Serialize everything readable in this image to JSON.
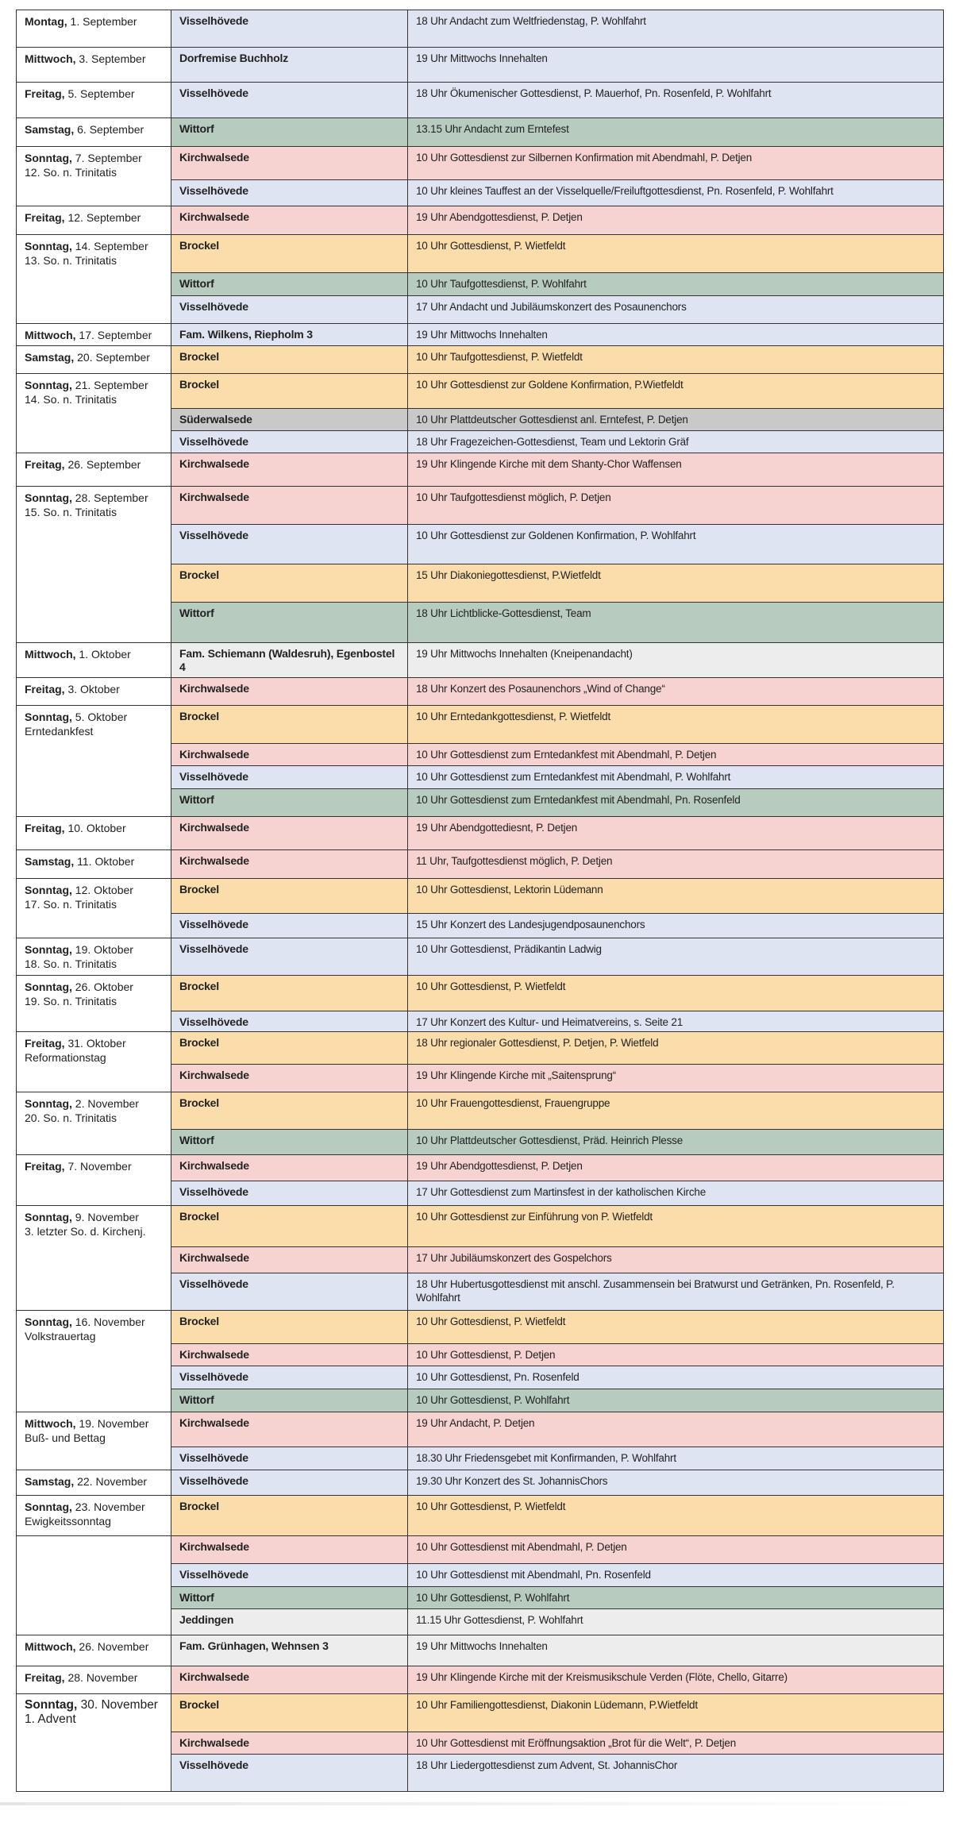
{
  "colors": {
    "blue": "#dfe4f2",
    "pink": "#f6d3d0",
    "orange": "#fbdcab",
    "green": "#b8cbbf",
    "gray": "#c9c9c9",
    "lightgray": "#ededed"
  },
  "days": [
    {
      "day": "Montag,",
      "date": " 1. September",
      "sub": "",
      "events": [
        {
          "loc": "Visselhövede",
          "text": "18 Uhr Andacht zum Weltfriedenstag, P. Wohlfahrt",
          "color": "blue"
        }
      ]
    },
    {
      "day": "Mittwoch,",
      "date": " 3. September",
      "sub": "",
      "events": [
        {
          "loc": "Dorfremise Buchholz",
          "text": "19 Uhr Mittwochs Innehalten",
          "color": "blue"
        }
      ]
    },
    {
      "day": "Freitag,",
      "date": " 5. September",
      "sub": "",
      "events": [
        {
          "loc": "Visselhövede",
          "text": "18 Uhr Ökumenischer Gottesdienst, P. Mauerhof, Pn. Rosenfeld, P. Wohlfahrt",
          "color": "blue"
        }
      ]
    },
    {
      "day": "Samstag,",
      "date": " 6. September",
      "sub": "",
      "events": [
        {
          "loc": "Wittorf",
          "text": "13.15 Uhr Andacht zum Erntefest",
          "color": "green"
        }
      ]
    },
    {
      "day": "Sonntag,",
      "date": " 7. September",
      "sub": "12. So. n. Trinitatis",
      "events": [
        {
          "loc": "Kirchwalsede",
          "text": "10 Uhr Gottesdienst zur Silbernen Konfirmation mit Abendmahl, P. Detjen",
          "color": "pink"
        },
        {
          "loc": "Visselhövede",
          "text": "10 Uhr kleines Tauffest an der Visselquelle/Freiluftgottesdienst, Pn. Rosenfeld, P. Wohlfahrt",
          "color": "blue"
        }
      ]
    },
    {
      "day": "Freitag,",
      "date": " 12. September",
      "sub": "",
      "events": [
        {
          "loc": "Kirchwalsede",
          "text": "19 Uhr Abendgottesdienst, P. Detjen",
          "color": "pink"
        }
      ]
    },
    {
      "day": "Sonntag,",
      "date": " 14. September",
      "sub": "13. So. n. Trinitatis",
      "events": [
        {
          "loc": "Brockel",
          "text": "10 Uhr Gottesdienst, P. Wietfeldt",
          "color": "orange"
        },
        {
          "loc": "Wittorf",
          "text": "10 Uhr Taufgottesdienst, P. Wohlfahrt",
          "color": "green"
        },
        {
          "loc": "Visselhövede",
          "text": "17 Uhr Andacht und Jubiläumskonzert des Posaunenchors",
          "color": "blue"
        }
      ]
    },
    {
      "day": "Mittwoch,",
      "date": " 17. September",
      "sub": "",
      "events": [
        {
          "loc": "Fam. Wilkens, Riepholm 3",
          "text": "19 Uhr Mittwochs Innehalten",
          "color": "blue"
        }
      ]
    },
    {
      "day": "Samstag,",
      "date": " 20. September",
      "sub": "",
      "events": [
        {
          "loc": "Brockel",
          "text": "10 Uhr Taufgottesdienst, P. Wietfeldt",
          "color": "orange"
        }
      ]
    },
    {
      "day": "Sonntag,",
      "date": " 21. September",
      "sub": "14. So. n. Trinitatis",
      "events": [
        {
          "loc": "Brockel",
          "text": "10 Uhr Gottesdienst zur Goldene Konfirmation, P.Wietfeldt",
          "color": "orange"
        },
        {
          "loc": "Süderwalsede",
          "text": "10 Uhr Plattdeutscher Gottesdienst anl. Erntefest, P. Detjen",
          "color": "gray"
        },
        {
          "loc": "Visselhövede",
          "text": "18 Uhr Fragezeichen-Gottesdienst, Team und Lektorin Gräf",
          "color": "blue"
        }
      ]
    },
    {
      "day": "Freitag,",
      "date": " 26. September",
      "sub": "",
      "events": [
        {
          "loc": "Kirchwalsede",
          "text": "19 Uhr Klingende Kirche mit dem Shanty-Chor Waffensen",
          "color": "pink"
        }
      ]
    },
    {
      "day": "Sonntag,",
      "date": " 28. September",
      "sub": "15. So. n. Trinitatis",
      "events": [
        {
          "loc": "Kirchwalsede",
          "text": "10 Uhr Taufgottesdienst möglich, P. Detjen",
          "color": "pink"
        },
        {
          "loc": "Visselhövede",
          "text": "10 Uhr Gottesdienst zur Goldenen Konfirmation, P. Wohlfahrt",
          "color": "blue"
        },
        {
          "loc": "Brockel",
          "text": "15 Uhr Diakoniegottesdienst, P.Wietfeldt",
          "color": "orange"
        },
        {
          "loc": "Wittorf",
          "text": "18 Uhr Lichtblicke-Gottesdienst, Team",
          "color": "green"
        }
      ]
    },
    {
      "day": "Mittwoch,",
      "date": " 1. Oktober",
      "sub": "",
      "events": [
        {
          "loc": "Fam. Schiemann (Waldesruh), Egenbostel 4",
          "text": "19 Uhr Mittwochs Innehalten (Kneipenandacht)",
          "color": "lightgray"
        }
      ]
    },
    {
      "day": "Freitag,",
      "date": " 3. Oktober",
      "sub": "",
      "events": [
        {
          "loc": "Kirchwalsede",
          "text": "18 Uhr Konzert des Posaunenchors „Wind of Change“",
          "color": "pink"
        }
      ]
    },
    {
      "day": "Sonntag,",
      "date": " 5. Oktober",
      "sub": "Erntedankfest",
      "events": [
        {
          "loc": "Brockel",
          "text": "10 Uhr Erntedankgottesdienst, P. Wietfeldt",
          "color": "orange"
        },
        {
          "loc": "Kirchwalsede",
          "text": "10 Uhr Gottesdienst zum Erntedankfest mit Abendmahl, P. Detjen",
          "color": "pink"
        },
        {
          "loc": "Visselhövede",
          "text": "10 Uhr Gottesdienst zum Erntedankfest mit Abendmahl, P. Wohlfahrt",
          "color": "blue"
        },
        {
          "loc": "Wittorf",
          "text": "10 Uhr Gottesdienst zum Erntedankfest mit Abendmahl, Pn. Rosenfeld",
          "color": "green"
        }
      ]
    },
    {
      "day": "Freitag,",
      "date": " 10. Oktober",
      "sub": "",
      "events": [
        {
          "loc": "Kirchwalsede",
          "text": "19 Uhr Abendgottediesnt, P. Detjen",
          "color": "pink"
        }
      ]
    },
    {
      "day": "Samstag,",
      "date": " 11. Oktober",
      "sub": "",
      "events": [
        {
          "loc": "Kirchwalsede",
          "text": "11 Uhr, Taufgottesdienst möglich, P. Detjen",
          "color": "pink"
        }
      ]
    },
    {
      "day": "Sonntag,",
      "date": " 12. Oktober",
      "sub": "17. So. n. Trinitatis",
      "events": [
        {
          "loc": "Brockel",
          "text": "10 Uhr Gottesdienst, Lektorin Lüdemann",
          "color": "orange"
        },
        {
          "loc": "Visselhövede",
          "text": "15 Uhr Konzert des Landesjugendposaunenchors",
          "color": "blue"
        }
      ]
    },
    {
      "day": "Sonntag,",
      "date": " 19. Oktober",
      "sub": "18. So. n. Trinitatis",
      "events": [
        {
          "loc": "Visselhövede",
          "text": "10 Uhr Gottesdienst, Prädikantin Ladwig",
          "color": "blue"
        }
      ]
    },
    {
      "day": "Sonntag,",
      "date": " 26. Oktober",
      "sub": "19. So. n. Trinitatis",
      "events": [
        {
          "loc": "Brockel",
          "text": "10 Uhr Gottesdienst, P. Wietfeldt",
          "color": "orange"
        },
        {
          "loc": "Visselhövede",
          "text": "17 Uhr Konzert des Kultur- und Heimatvereins, s. Seite 21",
          "color": "blue"
        }
      ]
    },
    {
      "day": "Freitag,",
      "date": " 31. Oktober",
      "sub": "Reformationstag",
      "events": [
        {
          "loc": "Brockel",
          "text": "18 Uhr regionaler Gottesdienst, P. Detjen, P. Wietfeld",
          "color": "orange"
        },
        {
          "loc": "Kirchwalsede",
          "text": "19 Uhr Klingende Kirche mit „Saitensprung“",
          "color": "pink"
        }
      ]
    },
    {
      "day": "Sonntag,",
      "date": " 2. November",
      "sub": "20. So. n. Trinitatis",
      "events": [
        {
          "loc": "Brockel",
          "text": "10 Uhr Frauengottesdienst, Frauengruppe",
          "color": "orange"
        },
        {
          "loc": "Wittorf",
          "text": "10 Uhr Plattdeutscher Gottesdienst, Präd. Heinrich Plesse",
          "color": "green"
        }
      ]
    },
    {
      "day": "Freitag,",
      "date": " 7. November",
      "sub": "",
      "events": [
        {
          "loc": "Kirchwalsede",
          "text": "19 Uhr Abendgottesdienst, P. Detjen",
          "color": "pink"
        },
        {
          "loc": "Visselhövede",
          "text": "17 Uhr Gottesdienst zum Martinsfest in der katholischen Kirche",
          "color": "blue"
        }
      ]
    },
    {
      "day": "Sonntag,",
      "date": " 9. November",
      "sub": "3. letzter So. d. Kirchenj.",
      "events": [
        {
          "loc": "Brockel",
          "text": "10 Uhr Gottesdienst zur Einführung von P. Wietfeldt",
          "color": "orange"
        },
        {
          "loc": "Kirchwalsede",
          "text": "17 Uhr Jubiläumskonzert des Gospelchors",
          "color": "pink"
        },
        {
          "loc": "Visselhövede",
          "text": "18 Uhr Hubertusgottesdienst mit anschl. Zusammensein bei Bratwurst und Getränken, Pn. Rosenfeld, P. Wohlfahrt",
          "color": "blue"
        }
      ]
    },
    {
      "day": "Sonntag,",
      "date": " 16. November",
      "sub": "Volkstrauertag",
      "events": [
        {
          "loc": "Brockel",
          "text": "10 Uhr Gottesdienst, P. Wietfeldt",
          "color": "orange"
        },
        {
          "loc": "Kirchwalsede",
          "text": "10 Uhr Gottesdienst, P. Detjen",
          "color": "pink"
        },
        {
          "loc": "Visselhövede",
          "text": "10 Uhr Gottesdienst, Pn. Rosenfeld",
          "color": "blue"
        },
        {
          "loc": "Wittorf",
          "text": "10 Uhr Gottesdienst, P. Wohlfahrt",
          "color": "green"
        }
      ]
    },
    {
      "day": "Mittwoch,",
      "date": " 19. November",
      "sub": "Buß- und Bettag",
      "events": [
        {
          "loc": "Kirchwalsede",
          "text": "19 Uhr Andacht, P. Detjen",
          "color": "pink"
        },
        {
          "loc": "Visselhövede",
          "text": "18.30 Uhr Friedensgebet mit Konfirmanden, P. Wohlfahrt",
          "color": "blue"
        }
      ]
    },
    {
      "day": "Samstag,",
      "date": " 22. November",
      "sub": "",
      "events": [
        {
          "loc": "Visselhövede",
          "text": "19.30 Uhr Konzert des St. JohannisChors",
          "color": "blue"
        }
      ]
    },
    {
      "day": "Sonntag,",
      "date": " 23. November",
      "sub": "Ewigkeitssonntag",
      "events": [
        {
          "loc": "Brockel",
          "text": "10 Uhr Gottesdienst, P. Wietfeldt",
          "color": "orange"
        }
      ]
    },
    {
      "day": "",
      "date": "",
      "sub": "",
      "events": [
        {
          "loc": "Kirchwalsede",
          "text": "10 Uhr Gottesdienst mit Abendmahl, P. Detjen",
          "color": "pink"
        },
        {
          "loc": "Visselhövede",
          "text": "10 Uhr Gottesdienst mit Abendmahl, Pn. Rosenfeld",
          "color": "blue"
        },
        {
          "loc": "Wittorf",
          "text": "10 Uhr Gottesdienst, P. Wohlfahrt",
          "color": "green"
        },
        {
          "loc": "Jeddingen",
          "text": "11.15 Uhr Gottesdienst, P. Wohlfahrt",
          "color": "lightgray"
        }
      ]
    },
    {
      "day": "Mittwoch,",
      "date": " 26. November",
      "sub": "",
      "events": [
        {
          "loc": "Fam. Grünhagen, Wehnsen 3",
          "text": "19 Uhr Mittwochs Innehalten",
          "color": "lightgray"
        }
      ]
    },
    {
      "day": "Freitag,",
      "date": " 28. November",
      "sub": "",
      "events": [
        {
          "loc": "Kirchwalsede",
          "text": "19 Uhr Klingende Kirche mit der Kreismusikschule Verden (Flöte, Chello, Gitarre)",
          "color": "pink"
        }
      ]
    },
    {
      "day": "Sonntag,",
      "date": " 30. November",
      "sub": "1. Advent",
      "events": [
        {
          "loc": "Brockel",
          "text": "10 Uhr Familiengottesdienst, Diakonin Lüdemann, P.Wietfeldt",
          "color": "orange"
        },
        {
          "loc": "Kirchwalsede",
          "text": "10 Uhr Gottesdienst mit Eröffnungsaktion „Brot für die Welt“, P. Detjen",
          "color": "pink"
        },
        {
          "loc": "Visselhövede",
          "text": "18 Uhr Liedergottesdienst zum Advent, St. JohannisChor",
          "color": "blue"
        }
      ]
    }
  ]
}
